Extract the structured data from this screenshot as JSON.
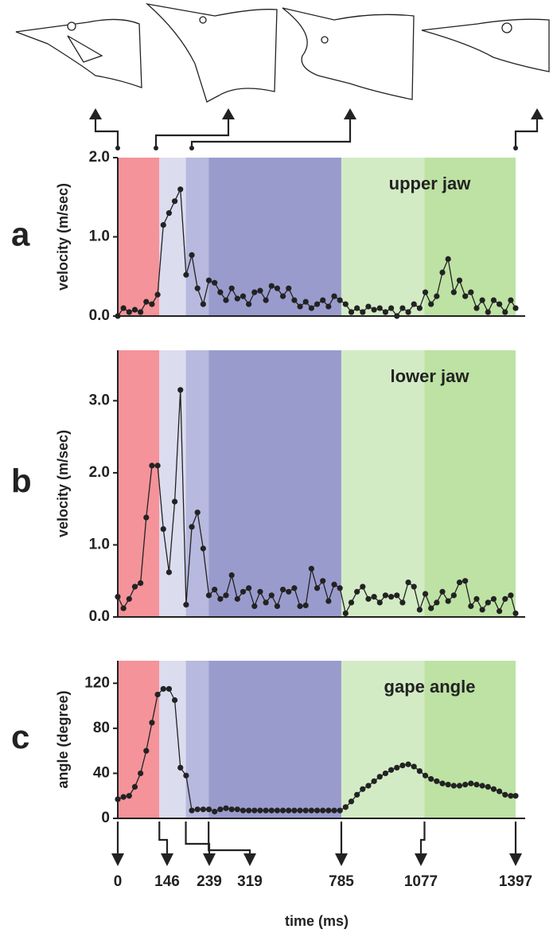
{
  "chart_data": [
    {
      "type": "line",
      "panel": "a",
      "annotation": "upper jaw",
      "y_label": "velocity (m/sec)",
      "color": "#222222",
      "xlim": [
        0,
        1397
      ],
      "ylim": [
        0,
        2.0
      ],
      "yticks": [
        {
          "value": 0,
          "label": "0.0"
        },
        {
          "value": 1,
          "label": "1.0"
        },
        {
          "value": 2,
          "label": "2.0"
        }
      ],
      "x": [
        0,
        20,
        40,
        60,
        80,
        100,
        120,
        140,
        160,
        180,
        200,
        220,
        240,
        260,
        280,
        300,
        320,
        340,
        360,
        380,
        400,
        420,
        440,
        460,
        480,
        500,
        520,
        540,
        560,
        580,
        600,
        620,
        640,
        660,
        680,
        700,
        720,
        740,
        760,
        780,
        800,
        820,
        840,
        860,
        880,
        900,
        920,
        940,
        960,
        980,
        1000,
        1020,
        1040,
        1060,
        1080,
        1100,
        1120,
        1140,
        1160,
        1180,
        1200,
        1220,
        1240,
        1260,
        1280,
        1300,
        1320,
        1340,
        1360,
        1380,
        1397
      ],
      "values": [
        0.0,
        0.1,
        0.05,
        0.08,
        0.05,
        0.18,
        0.15,
        0.27,
        1.15,
        1.3,
        1.45,
        1.6,
        0.52,
        0.77,
        0.35,
        0.15,
        0.45,
        0.42,
        0.3,
        0.2,
        0.35,
        0.22,
        0.25,
        0.15,
        0.3,
        0.32,
        0.2,
        0.38,
        0.35,
        0.25,
        0.35,
        0.2,
        0.12,
        0.18,
        0.1,
        0.15,
        0.2,
        0.12,
        0.25,
        0.2,
        0.15,
        0.05,
        0.1,
        0.05,
        0.12,
        0.08,
        0.1,
        0.05,
        0.1,
        0.0,
        0.1,
        0.05,
        0.15,
        0.1,
        0.3,
        0.15,
        0.25,
        0.55,
        0.72,
        0.3,
        0.45,
        0.25,
        0.3,
        0.1,
        0.2,
        0.05,
        0.2,
        0.15,
        0.05,
        0.2,
        0.1
      ]
    },
    {
      "type": "line",
      "panel": "b",
      "annotation": "lower jaw",
      "y_label": "velocity (m/sec)",
      "color": "#222222",
      "xlim": [
        0,
        1397
      ],
      "ylim": [
        0,
        3.7
      ],
      "yticks": [
        {
          "value": 0,
          "label": "0.0"
        },
        {
          "value": 1,
          "label": "1.0"
        },
        {
          "value": 2,
          "label": "2.0"
        },
        {
          "value": 3,
          "label": "3.0"
        }
      ],
      "x": [
        0,
        20,
        40,
        60,
        80,
        100,
        120,
        140,
        160,
        180,
        200,
        220,
        240,
        260,
        280,
        300,
        320,
        340,
        360,
        380,
        400,
        420,
        440,
        460,
        480,
        500,
        520,
        540,
        560,
        580,
        600,
        620,
        640,
        660,
        680,
        700,
        720,
        740,
        760,
        780,
        800,
        820,
        840,
        860,
        880,
        900,
        920,
        940,
        960,
        980,
        1000,
        1020,
        1040,
        1060,
        1080,
        1100,
        1120,
        1140,
        1160,
        1180,
        1200,
        1220,
        1240,
        1260,
        1280,
        1300,
        1320,
        1340,
        1360,
        1380,
        1397
      ],
      "values": [
        0.28,
        0.12,
        0.25,
        0.42,
        0.47,
        1.38,
        2.1,
        2.1,
        1.22,
        0.62,
        1.6,
        3.15,
        0.17,
        1.25,
        1.45,
        0.95,
        0.3,
        0.38,
        0.25,
        0.3,
        0.58,
        0.25,
        0.35,
        0.4,
        0.15,
        0.35,
        0.2,
        0.3,
        0.15,
        0.38,
        0.35,
        0.4,
        0.15,
        0.16,
        0.67,
        0.4,
        0.5,
        0.22,
        0.45,
        0.4,
        0.05,
        0.2,
        0.35,
        0.42,
        0.25,
        0.28,
        0.2,
        0.3,
        0.28,
        0.3,
        0.2,
        0.48,
        0.42,
        0.1,
        0.32,
        0.12,
        0.2,
        0.35,
        0.22,
        0.3,
        0.48,
        0.5,
        0.15,
        0.25,
        0.1,
        0.2,
        0.25,
        0.08,
        0.25,
        0.3,
        0.05
      ]
    },
    {
      "type": "line",
      "panel": "c",
      "annotation": "gape angle",
      "y_label": "angle (degree)",
      "x_label": "time (ms)",
      "color": "#222222",
      "xlim": [
        0,
        1397
      ],
      "ylim": [
        0,
        140
      ],
      "yticks": [
        0,
        40,
        80,
        120
      ],
      "xticks": [
        0,
        146,
        239,
        319,
        785,
        1077,
        1397
      ],
      "band_colors": [
        "#f4939a",
        "#dcdcef",
        "#b8b9de",
        "#9a9bcd",
        "#d3ebc5",
        "#bde2a4"
      ],
      "x": [
        0,
        20,
        40,
        60,
        80,
        100,
        120,
        140,
        160,
        180,
        200,
        220,
        240,
        260,
        280,
        300,
        320,
        340,
        360,
        380,
        400,
        420,
        440,
        460,
        480,
        500,
        520,
        540,
        560,
        580,
        600,
        620,
        640,
        660,
        680,
        700,
        720,
        740,
        760,
        780,
        800,
        820,
        840,
        860,
        880,
        900,
        920,
        940,
        960,
        980,
        1000,
        1020,
        1040,
        1060,
        1080,
        1100,
        1120,
        1140,
        1160,
        1180,
        1200,
        1220,
        1240,
        1260,
        1280,
        1300,
        1320,
        1340,
        1360,
        1380,
        1397
      ],
      "values": [
        17,
        19,
        20,
        28,
        40,
        60,
        85,
        110,
        115,
        115,
        105,
        45,
        38,
        7,
        8,
        8,
        8,
        6,
        8,
        9,
        8,
        8,
        7,
        7,
        7,
        7,
        7,
        7,
        7,
        7,
        7,
        7,
        7,
        7,
        7,
        7,
        7,
        7,
        7,
        7,
        10,
        15,
        21,
        26,
        29,
        33,
        37,
        40,
        43,
        45,
        47,
        48,
        46,
        42,
        38,
        35,
        33,
        31,
        30,
        29,
        29,
        30,
        31,
        30,
        29,
        28,
        26,
        24,
        21,
        20,
        20
      ]
    }
  ]
}
